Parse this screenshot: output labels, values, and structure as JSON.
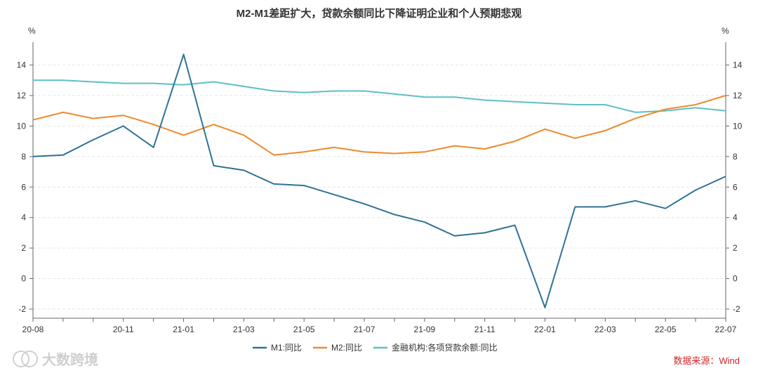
{
  "chart_data": {
    "type": "line",
    "title": "M2-M1差距扩大，贷款余额同比下降证明企业和个人预期悲观",
    "ylabel_left": "%",
    "ylabel_right": "%",
    "ylim": [
      -2.6,
      15.5
    ],
    "yticks": [
      -2,
      0,
      2,
      4,
      6,
      8,
      10,
      12,
      14
    ],
    "x": [
      "20-08",
      "20-09",
      "20-10",
      "20-11",
      "20-12",
      "21-01",
      "21-02",
      "21-03",
      "21-04",
      "21-05",
      "21-06",
      "21-07",
      "21-08",
      "21-09",
      "21-10",
      "21-11",
      "21-12",
      "22-01",
      "22-02",
      "22-03",
      "22-04",
      "22-05",
      "22-06",
      "22-07"
    ],
    "xtick_labels": [
      "20-08",
      "20-11",
      "21-01",
      "21-03",
      "21-05",
      "21-07",
      "21-09",
      "21-11",
      "22-01",
      "22-03",
      "22-05",
      "22-07"
    ],
    "series": [
      {
        "name": "M1:同比",
        "color": "#2e7396",
        "values": [
          8.0,
          8.1,
          9.1,
          10.0,
          8.6,
          14.7,
          7.4,
          7.1,
          6.2,
          6.1,
          5.5,
          4.9,
          4.2,
          3.7,
          2.8,
          3.0,
          3.5,
          -1.9,
          4.7,
          4.7,
          5.1,
          4.6,
          5.8,
          6.7
        ]
      },
      {
        "name": "M2:同比",
        "color": "#ec8a2c",
        "values": [
          10.4,
          10.9,
          10.5,
          10.7,
          10.1,
          9.4,
          10.1,
          9.4,
          8.1,
          8.3,
          8.6,
          8.3,
          8.2,
          8.3,
          8.7,
          8.5,
          9.0,
          9.8,
          9.2,
          9.7,
          10.5,
          11.1,
          11.4,
          12.0
        ]
      },
      {
        "name": "金融机构:各项贷款余额:同比",
        "color": "#5fbfc4",
        "values": [
          13.0,
          13.0,
          12.9,
          12.8,
          12.8,
          12.7,
          12.9,
          12.6,
          12.3,
          12.2,
          12.3,
          12.3,
          12.1,
          11.9,
          11.9,
          11.7,
          11.6,
          11.5,
          11.4,
          11.4,
          10.9,
          11.0,
          11.2,
          11.0
        ]
      }
    ]
  },
  "source": "数据来源：Wind",
  "watermark": "大数跨境",
  "colors": {
    "grid": "#e6e6e6",
    "axis": "#666666"
  }
}
